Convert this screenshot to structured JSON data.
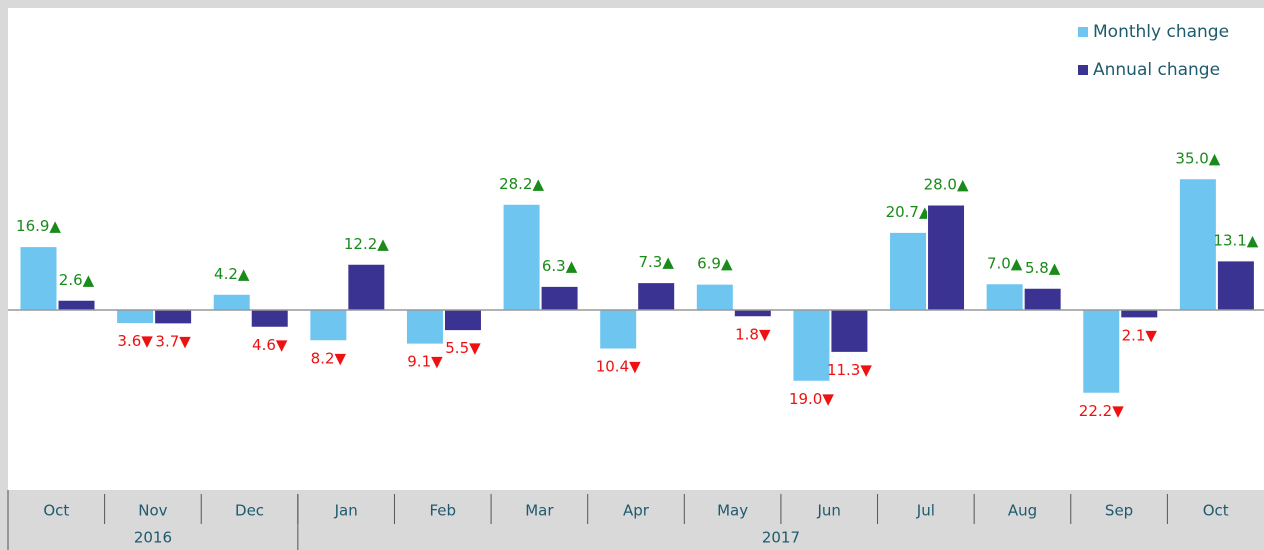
{
  "chart_data": {
    "type": "bar",
    "categories": [
      "Oct",
      "Nov",
      "Dec",
      "Jan",
      "Feb",
      "Mar",
      "Apr",
      "May",
      "Jun",
      "Jul",
      "Aug",
      "Sep",
      "Oct"
    ],
    "category_groups": [
      {
        "label": "2016",
        "count": 3
      },
      {
        "label": "2017",
        "count": 10
      }
    ],
    "series": [
      {
        "name": "Monthly change",
        "color": "#6ec6f0",
        "values": [
          16.9,
          -3.6,
          4.2,
          -8.2,
          -9.1,
          28.2,
          -10.4,
          6.9,
          -19.0,
          20.7,
          7.0,
          -22.2,
          35.0
        ],
        "value_labels": [
          "16.9▲",
          "3.6▼",
          "4.2▲",
          "8.2▼",
          "9.1▼",
          "28.2▲",
          "10.4▼",
          "6.9▲",
          "19.0▼",
          "20.7▲",
          "7.0▲",
          "22.2▼",
          "35.0▲"
        ]
      },
      {
        "name": "Annual change",
        "color": "#3b3391",
        "values": [
          2.6,
          -3.7,
          -4.6,
          12.2,
          -5.5,
          6.3,
          7.3,
          -1.8,
          -11.3,
          28.0,
          5.8,
          -2.1,
          13.1
        ],
        "value_labels": [
          "2.6▲",
          "3.7▼",
          "4.6▼",
          "12.2▲",
          "5.5▼",
          "6.3▲",
          "7.3▲",
          "1.8▼",
          "11.3▼",
          "28.0▲",
          "5.8▲",
          "2.1▼",
          "13.1▲"
        ]
      }
    ],
    "positive_color": "#1a8a1a",
    "negative_color": "#ee1111",
    "ylim": [
      -48,
      80
    ],
    "legend": "top-right"
  }
}
